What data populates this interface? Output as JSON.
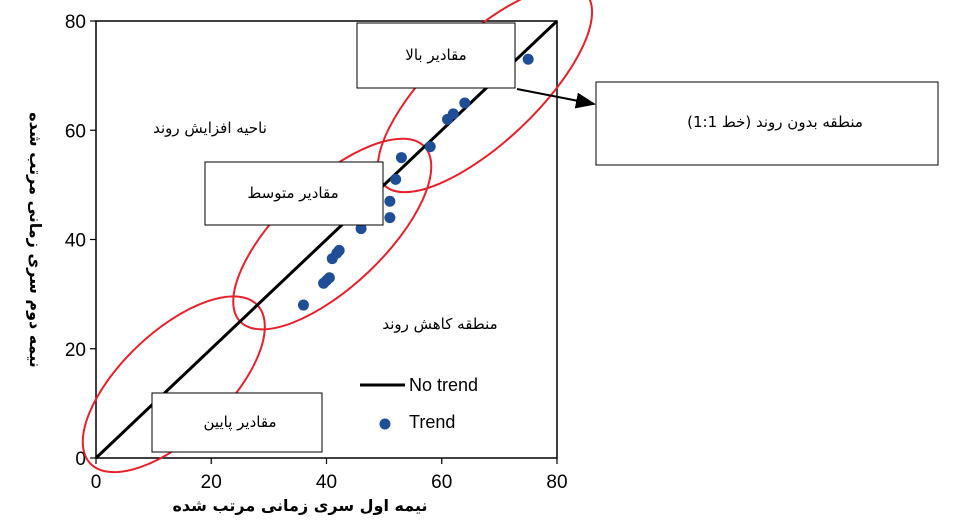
{
  "chart_data": {
    "type": "scatter",
    "title": "",
    "xlabel": "نیمه اول سری زمانی مرتب شده",
    "ylabel": "نیمه دوم سری زمانی مرتب شده",
    "xlim": [
      0,
      80
    ],
    "ylim": [
      0,
      80
    ],
    "xticks": [
      0,
      20,
      40,
      60,
      80
    ],
    "yticks": [
      0,
      20,
      40,
      60,
      80
    ],
    "grid": false,
    "legend_placement": "bottom-right",
    "series": [
      {
        "name": "No trend",
        "kind": "line",
        "color": "#000000",
        "points": [
          [
            0,
            0
          ],
          [
            80,
            80
          ]
        ]
      },
      {
        "name": "Trend",
        "kind": "scatter",
        "color": "#1f4e96",
        "points": [
          [
            36,
            28
          ],
          [
            39.5,
            32
          ],
          [
            40,
            32.5
          ],
          [
            40.5,
            33
          ],
          [
            41,
            36.5
          ],
          [
            41.8,
            37.5
          ],
          [
            42.2,
            38
          ],
          [
            46,
            42
          ],
          [
            51,
            44
          ],
          [
            51,
            47
          ],
          [
            52,
            51
          ],
          [
            53,
            55
          ],
          [
            58,
            57
          ],
          [
            61,
            62
          ],
          [
            62,
            63
          ],
          [
            64,
            65
          ],
          [
            75,
            73
          ]
        ]
      }
    ],
    "annotations": {
      "high_values": "مقادیر بالا",
      "medium_values": "مقادیر متوسط",
      "low_values": "مقادیر پایین",
      "increasing_zone": "ناحیه افزایش روند",
      "decreasing_zone": "منطقه کاهش روند",
      "no_trend_zone": "منطقه بدون روند (خط 1:1)"
    },
    "ellipse_color": "#e8202a"
  }
}
